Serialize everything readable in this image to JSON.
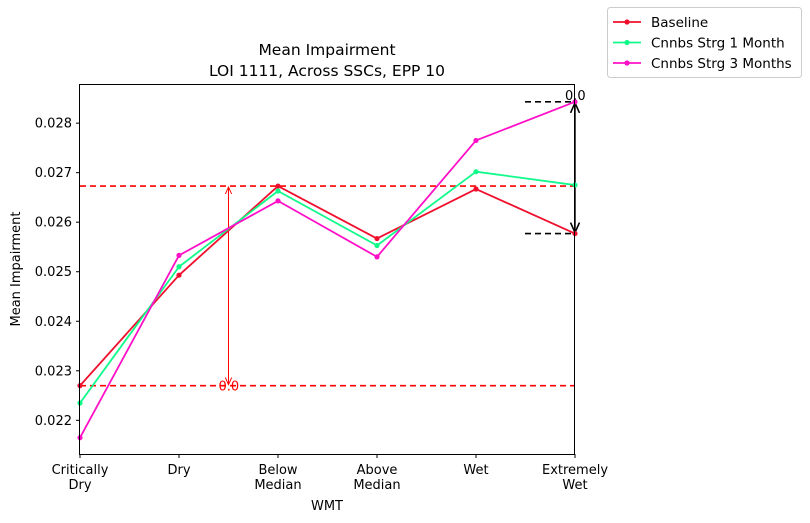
{
  "chart_data": {
    "type": "line",
    "title": "Mean Impairment",
    "subtitle": "LOI 1111, Across SSCs, EPP 10",
    "xlabel": "WMT",
    "ylabel": "Mean Impairment",
    "categories": [
      [
        "Critically",
        "Dry"
      ],
      [
        "Dry"
      ],
      [
        "Below",
        "Median"
      ],
      [
        "Above",
        "Median"
      ],
      [
        "Wet"
      ],
      [
        "Extremely",
        "Wet"
      ]
    ],
    "ylim": [
      0.02132,
      0.02877
    ],
    "yticks": [
      "0.022",
      "0.023",
      "0.024",
      "0.025",
      "0.026",
      "0.027",
      "0.028"
    ],
    "ytick_values": [
      0.022,
      0.023,
      0.024,
      0.025,
      0.026,
      0.027,
      0.028
    ],
    "grid": false,
    "legend_position": "outside-top-right",
    "series": [
      {
        "name": "Baseline",
        "color": "#f0102e",
        "values": [
          0.0227,
          0.02493,
          0.02673,
          0.02567,
          0.02667,
          0.02577
        ]
      },
      {
        "name": "Cnnbs Strg 1 Month",
        "color": "#10fa8a",
        "values": [
          0.02235,
          0.0251,
          0.02663,
          0.02553,
          0.02702,
          0.02675
        ]
      },
      {
        "name": "Cnnbs Strg 3 Months",
        "color": "#ff10c8",
        "values": [
          0.02165,
          0.02533,
          0.02643,
          0.0253,
          0.02765,
          0.02843
        ]
      }
    ],
    "annotations": {
      "red_span": {
        "low": 0.0227,
        "high": 0.02673,
        "at_category_position": 1.5,
        "label": "0.0",
        "color": "#ff0000"
      },
      "black_span": {
        "low": 0.02577,
        "high": 0.02843,
        "at_category_position": 5,
        "label": "0.0",
        "color": "#000000"
      }
    }
  }
}
